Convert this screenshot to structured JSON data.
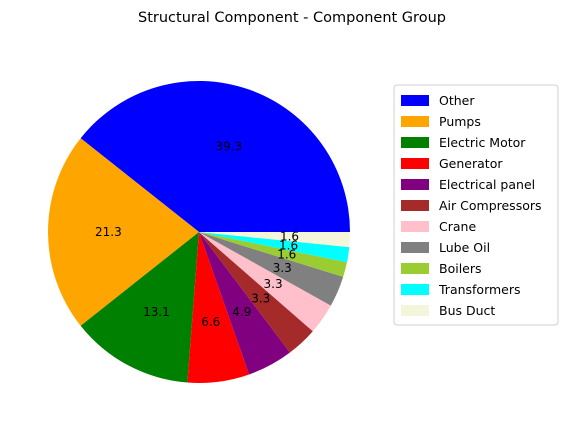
{
  "chart_data": {
    "type": "pie",
    "title": "Structural Component - Component Group",
    "legend_position": "right",
    "slices": [
      {
        "label": "Other",
        "value": 39.3,
        "color": "#0000ff"
      },
      {
        "label": "Pumps",
        "value": 21.3,
        "color": "#ffa500"
      },
      {
        "label": "Electric Motor",
        "value": 13.1,
        "color": "#008000"
      },
      {
        "label": "Generator",
        "value": 6.6,
        "color": "#ff0000"
      },
      {
        "label": "Electrical panel",
        "value": 4.9,
        "color": "#800080"
      },
      {
        "label": "Air Compressors",
        "value": 3.3,
        "color": "#a52a2a"
      },
      {
        "label": "Crane",
        "value": 3.3,
        "color": "#ffc0cb"
      },
      {
        "label": "Lube Oil",
        "value": 3.3,
        "color": "#808080"
      },
      {
        "label": "Boilers",
        "value": 1.6,
        "color": "#9acd32"
      },
      {
        "label": "Transformers",
        "value": 1.6,
        "color": "#00ffff"
      },
      {
        "label": "Bus Duct",
        "value": 1.6,
        "color": "#f5f5dc"
      }
    ]
  }
}
